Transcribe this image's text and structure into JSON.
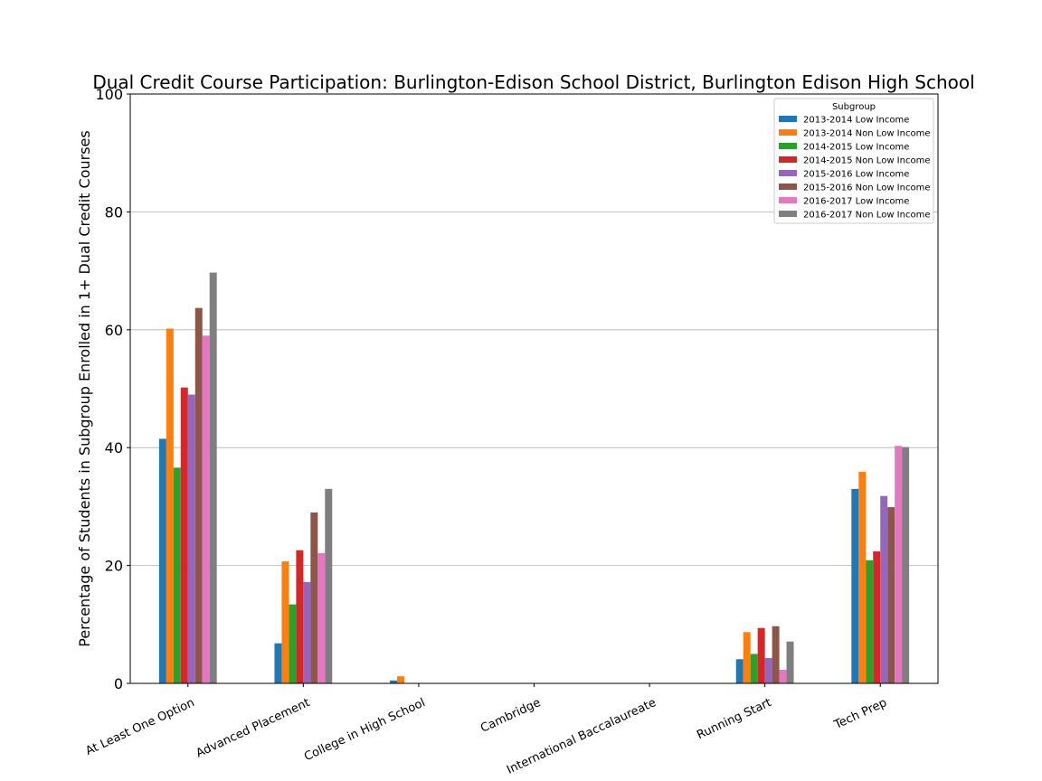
{
  "chart_data": {
    "type": "bar",
    "title": "Dual Credit Course Participation: Burlington-Edison School District, Burlington Edison High School",
    "xlabel": "",
    "ylabel": "Percentage of Students in Subgroup Enrolled in 1+ Dual Credit Courses",
    "ylim": [
      0,
      100
    ],
    "yticks": [
      0,
      20,
      40,
      60,
      80,
      100
    ],
    "grid": "horizontal",
    "legend": {
      "title": "Subgroup",
      "position": "top-right"
    },
    "categories": [
      "At Least One Option",
      "Advanced Placement",
      "College in High School",
      "Cambridge",
      "International Baccalaureate",
      "Running Start",
      "Tech Prep"
    ],
    "series": [
      {
        "name": "2013-2014 Low Income",
        "color": "#1f77b4",
        "values": [
          41.5,
          6.8,
          0.5,
          0,
          0,
          4.1,
          33.0
        ]
      },
      {
        "name": "2013-2014 Non Low Income",
        "color": "#ff7f0e",
        "values": [
          60.2,
          20.7,
          1.2,
          0,
          0,
          8.7,
          35.9
        ]
      },
      {
        "name": "2014-2015 Low Income",
        "color": "#2ca02c",
        "values": [
          36.6,
          13.4,
          0,
          0,
          0,
          5.0,
          20.9
        ]
      },
      {
        "name": "2014-2015 Non Low Income",
        "color": "#d62728",
        "values": [
          50.2,
          22.6,
          0,
          0,
          0,
          9.4,
          22.4
        ]
      },
      {
        "name": "2015-2016 Low Income",
        "color": "#9467bd",
        "values": [
          49.0,
          17.2,
          0,
          0,
          0,
          4.3,
          31.8
        ]
      },
      {
        "name": "2015-2016 Non Low Income",
        "color": "#8c564b",
        "values": [
          63.7,
          29.0,
          0,
          0,
          0,
          9.7,
          29.9
        ]
      },
      {
        "name": "2016-2017 Low Income",
        "color": "#e377c2",
        "values": [
          59.0,
          22.1,
          0,
          0,
          0,
          2.3,
          40.3
        ]
      },
      {
        "name": "2016-2017 Non Low Income",
        "color": "#7f7f7f",
        "values": [
          69.7,
          33.0,
          0,
          0,
          0,
          7.1,
          40.1
        ]
      }
    ]
  }
}
